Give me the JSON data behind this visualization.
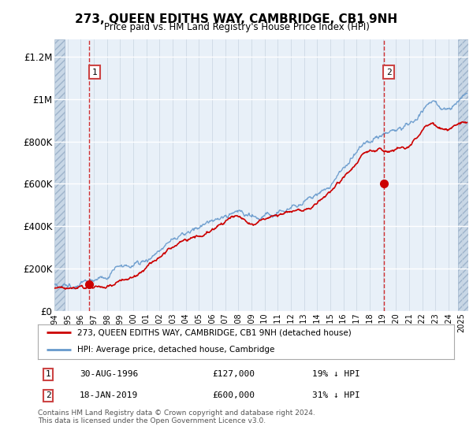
{
  "title": "273, QUEEN EDITHS WAY, CAMBRIDGE, CB1 9NH",
  "subtitle": "Price paid vs. HM Land Registry's House Price Index (HPI)",
  "ylim": [
    0,
    1280000
  ],
  "xlim_start": 1994.0,
  "xlim_end": 2025.5,
  "transaction1": {
    "date_num": 1996.66,
    "price": 127000,
    "label": "1",
    "date_str": "30-AUG-1996",
    "price_str": "£127,000",
    "pct_str": "19% ↓ HPI"
  },
  "transaction2": {
    "date_num": 2019.05,
    "price": 600000,
    "label": "2",
    "date_str": "18-JAN-2019",
    "price_str": "£600,000",
    "pct_str": "31% ↓ HPI"
  },
  "red_line_color": "#cc0000",
  "blue_line_color": "#6699cc",
  "plot_bg": "#e8f0f8",
  "legend_label_red": "273, QUEEN EDITHS WAY, CAMBRIDGE, CB1 9NH (detached house)",
  "legend_label_blue": "HPI: Average price, detached house, Cambridge",
  "footer": "Contains HM Land Registry data © Crown copyright and database right 2024.\nThis data is licensed under the Open Government Licence v3.0.",
  "xtick_years": [
    1994,
    1995,
    1996,
    1997,
    1998,
    1999,
    2000,
    2001,
    2002,
    2003,
    2004,
    2005,
    2006,
    2007,
    2008,
    2009,
    2010,
    2011,
    2012,
    2013,
    2014,
    2015,
    2016,
    2017,
    2018,
    2019,
    2020,
    2021,
    2022,
    2023,
    2024,
    2025
  ]
}
